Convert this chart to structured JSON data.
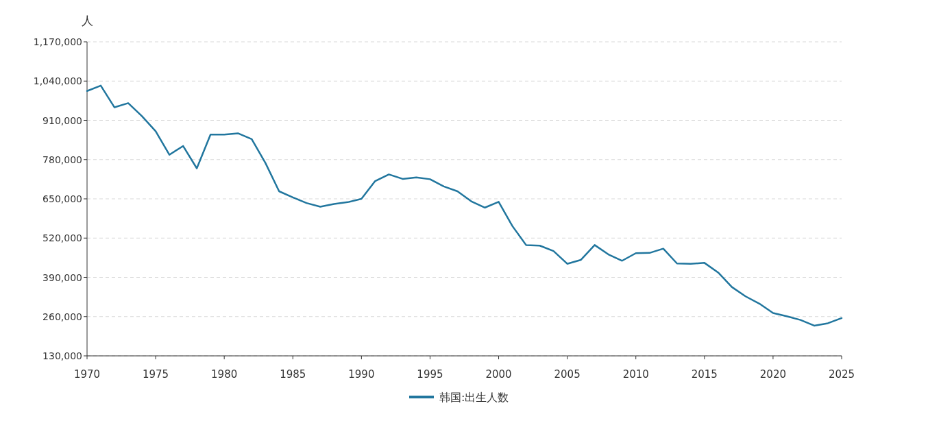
{
  "chart_data": {
    "type": "line",
    "ylabel": "人",
    "x": [
      1970,
      1971,
      1972,
      1973,
      1974,
      1975,
      1976,
      1977,
      1978,
      1979,
      1980,
      1981,
      1982,
      1983,
      1984,
      1985,
      1986,
      1987,
      1988,
      1989,
      1990,
      1991,
      1992,
      1993,
      1994,
      1995,
      1996,
      1997,
      1998,
      1999,
      2000,
      2001,
      2002,
      2003,
      2004,
      2005,
      2006,
      2007,
      2008,
      2009,
      2010,
      2011,
      2012,
      2013,
      2014,
      2015,
      2016,
      2017,
      2018,
      2019,
      2020,
      2021,
      2022,
      2023,
      2024,
      2025
    ],
    "series": [
      {
        "name": "韩国:出生人数",
        "color": "#21769e",
        "values": [
          1007000,
          1025000,
          953000,
          967000,
          924000,
          874000,
          796000,
          825000,
          751000,
          863000,
          863000,
          867000,
          848000,
          769000,
          675000,
          655000,
          636000,
          624000,
          633000,
          639000,
          650000,
          709000,
          731000,
          716000,
          721000,
          715000,
          691000,
          675000,
          642000,
          621000,
          640000,
          560000,
          497000,
          495000,
          477000,
          435000,
          448000,
          497000,
          466000,
          445000,
          470000,
          471000,
          485000,
          436000,
          435000,
          438000,
          406000,
          358000,
          327000,
          303000,
          272000,
          261000,
          249000,
          230000,
          238000,
          255000
        ]
      }
    ],
    "xlim": [
      1970,
      2025
    ],
    "xticks": [
      1970,
      1975,
      1980,
      1985,
      1990,
      1995,
      2000,
      2005,
      2010,
      2015,
      2020,
      2025
    ],
    "ylim": [
      130000,
      1170000
    ],
    "yticks": [
      {
        "value": 130000,
        "label": "130,000"
      },
      {
        "value": 260000,
        "label": "260,000"
      },
      {
        "value": 390000,
        "label": "390,000"
      },
      {
        "value": 520000,
        "label": "520,000"
      },
      {
        "value": 650000,
        "label": "650,000"
      },
      {
        "value": 780000,
        "label": "780,000"
      },
      {
        "value": 910000,
        "label": "910,000"
      },
      {
        "value": 1040000,
        "label": "1,040,000"
      },
      {
        "value": 1170000,
        "label": "1,170,000"
      }
    ],
    "grid": "y",
    "legend": "bottom",
    "marker": "none",
    "line_style": "solid"
  }
}
